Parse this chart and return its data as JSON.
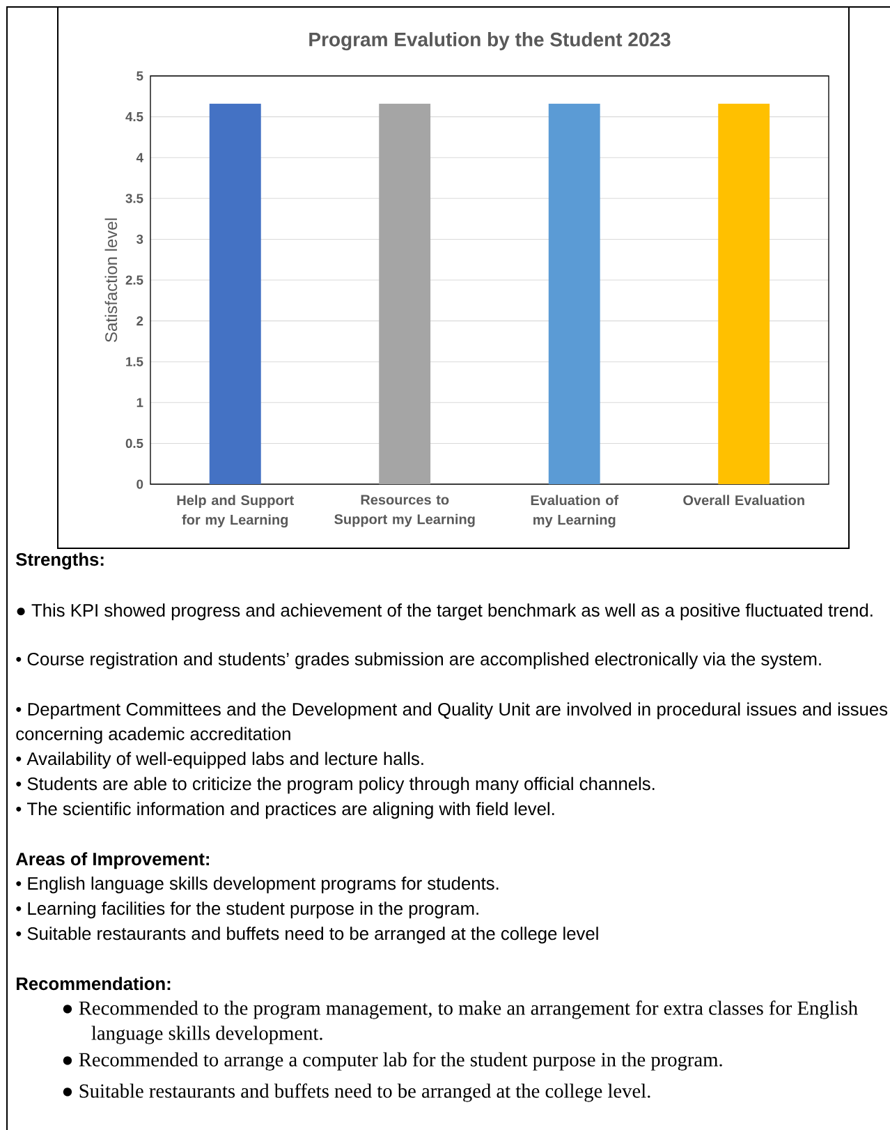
{
  "chart_data": {
    "type": "bar",
    "title": "Program Evalution by the Student 2023",
    "ylabel": "Satisfaction level",
    "categories": [
      "Help and Support for my Learning",
      "Resources to Support my Learning",
      "Evaluation of my Learning",
      "Overall Evaluation"
    ],
    "values": [
      4.66,
      4.66,
      4.66,
      4.66
    ],
    "colors": [
      "#4472c4",
      "#a5a5a5",
      "#5b9bd5",
      "#ffc000"
    ],
    "ylim": [
      0,
      5
    ],
    "yticks": [
      0,
      0.5,
      1,
      1.5,
      2,
      2.5,
      3,
      3.5,
      4,
      4.5,
      5
    ],
    "grid": "y",
    "annotations": [
      "Strengths:",
      "● This KPI showed progress and achievement of the target benchmark as well as a positive fluctuated trend.",
      "• Course registration and students’ grades submission are accomplished electronically via the system.",
      "• Department Committees and the Development and Quality Unit are involved in procedural issues and issues concerning academic accreditation",
      "• Availability of well-equipped labs and lecture halls.",
      "• Students are able to criticize the program policy through many official channels.",
      "• The scientific information and practices are aligning with field level.",
      "Areas of Improvement:",
      "• English language skills development programs for students.",
      "• Learning facilities for the student purpose in the program.",
      "• Suitable restaurants and buffets need to be arranged at the college level",
      "Recommendation:",
      "● Recommended to the program management, to make an arrangement for extra classes for English language skills development.",
      "● Recommended to arrange a computer lab for the student purpose in the program.",
      "● Suitable restaurants and buffets need to be arranged at the college level."
    ]
  }
}
